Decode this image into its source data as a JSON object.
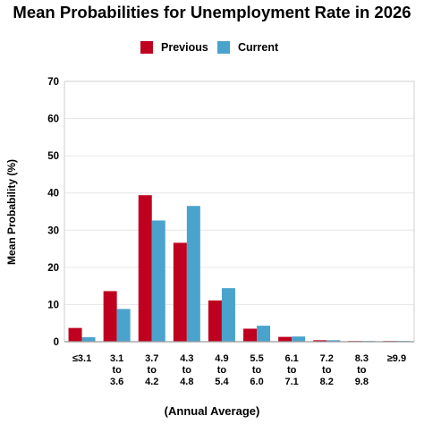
{
  "chart_data": {
    "type": "bar",
    "title": "Mean Probabilities for Unemployment Rate in 2026",
    "xlabel": "(Annual Average)",
    "ylabel": "Mean Probability (%)",
    "ylim": [
      0,
      70
    ],
    "yticks": [
      "0",
      "10",
      "20",
      "30",
      "40",
      "50",
      "60",
      "70"
    ],
    "grid": true,
    "legend_position": "top-center",
    "categories": [
      [
        "≤3.1"
      ],
      [
        "3.1",
        "to",
        "3.6"
      ],
      [
        "3.7",
        "to",
        "4.2"
      ],
      [
        "4.3",
        "to",
        "4.8"
      ],
      [
        "4.9",
        "to",
        "5.4"
      ],
      [
        "5.5",
        "to",
        "6.0"
      ],
      [
        "6.1",
        "to",
        "7.1"
      ],
      [
        "7.2",
        "to",
        "8.2"
      ],
      [
        "8.3",
        "to",
        "9.8"
      ],
      [
        "≥9.9"
      ]
    ],
    "series": [
      {
        "name": "Previous",
        "color": "#c0001f",
        "values": [
          3.7,
          13.6,
          39.4,
          26.6,
          11.1,
          3.5,
          1.3,
          0.4,
          0.2,
          0.2
        ]
      },
      {
        "name": "Current",
        "color": "#4aa3cc",
        "values": [
          1.2,
          8.8,
          32.6,
          36.5,
          14.4,
          4.3,
          1.4,
          0.4,
          0.2,
          0.2
        ]
      }
    ]
  }
}
